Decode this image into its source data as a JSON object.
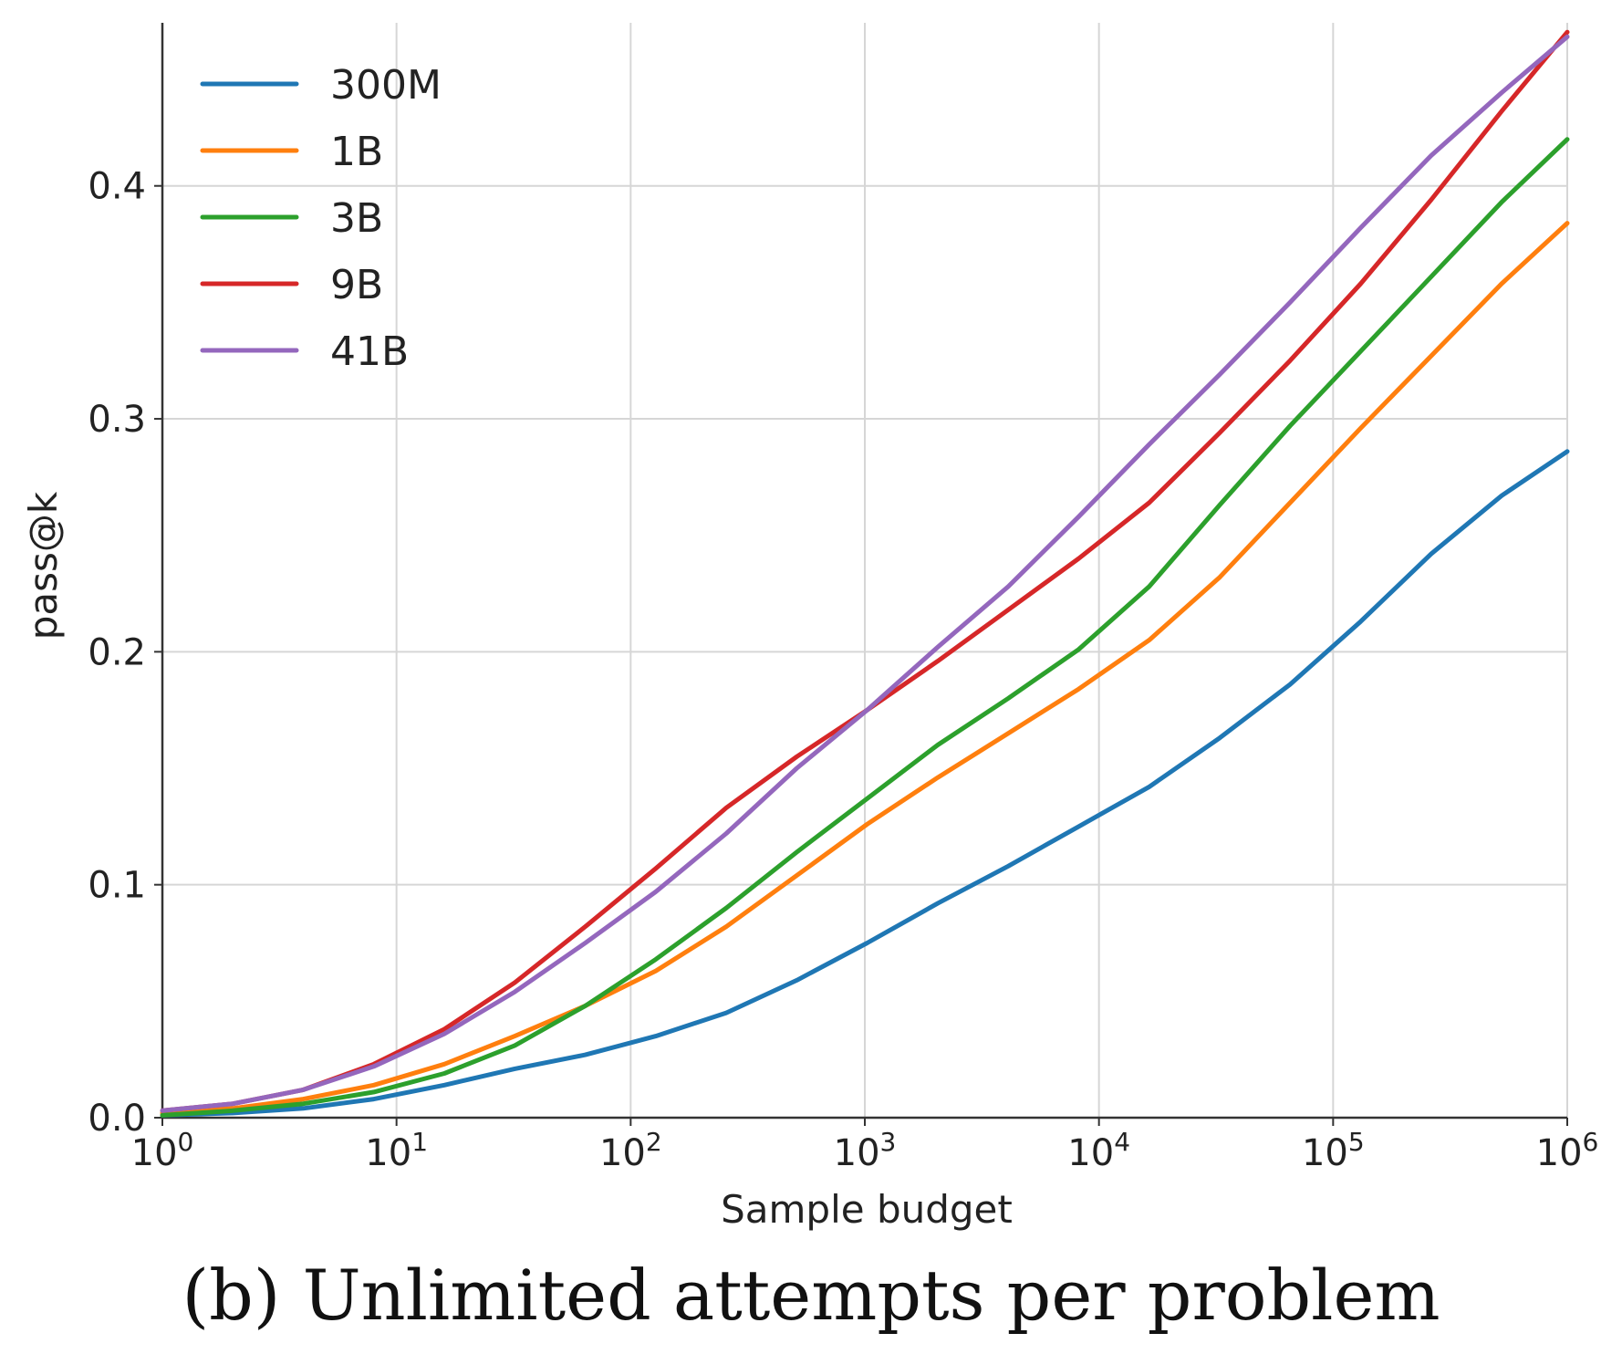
{
  "caption": "(b) Unlimited attempts per problem",
  "chart_data": {
    "type": "line",
    "xlabel": "Sample budget",
    "ylabel": "pass@k",
    "xscale": "log",
    "xlim": [
      1,
      1000000
    ],
    "ylim": [
      0,
      0.47
    ],
    "grid": true,
    "legend_position": "top-left",
    "x_ticks": [
      {
        "base": "10",
        "exp": "0"
      },
      {
        "base": "10",
        "exp": "1"
      },
      {
        "base": "10",
        "exp": "2"
      },
      {
        "base": "10",
        "exp": "3"
      },
      {
        "base": "10",
        "exp": "4"
      },
      {
        "base": "10",
        "exp": "5"
      },
      {
        "base": "10",
        "exp": "6"
      }
    ],
    "y_ticks": [
      "0.0",
      "0.1",
      "0.2",
      "0.3",
      "0.4"
    ],
    "series": [
      {
        "name": "300M",
        "color": "#1f77b4",
        "x": [
          1,
          2,
          4,
          8,
          16,
          32,
          64,
          128,
          256,
          512,
          1024,
          2048,
          4096,
          8192,
          16384,
          32768,
          65536,
          131072,
          262144,
          524288,
          1000000
        ],
        "y": [
          0.001,
          0.002,
          0.004,
          0.008,
          0.014,
          0.021,
          0.027,
          0.035,
          0.045,
          0.059,
          0.075,
          0.092,
          0.108,
          0.125,
          0.142,
          0.163,
          0.186,
          0.213,
          0.242,
          0.267,
          0.286
        ]
      },
      {
        "name": "1B",
        "color": "#ff7f0e",
        "x": [
          1,
          2,
          4,
          8,
          16,
          32,
          64,
          128,
          256,
          512,
          1024,
          2048,
          4096,
          8192,
          16384,
          32768,
          65536,
          131072,
          262144,
          524288,
          1000000
        ],
        "y": [
          0.002,
          0.004,
          0.008,
          0.014,
          0.023,
          0.035,
          0.048,
          0.063,
          0.082,
          0.104,
          0.126,
          0.146,
          0.165,
          0.184,
          0.205,
          0.232,
          0.264,
          0.296,
          0.327,
          0.358,
          0.384
        ]
      },
      {
        "name": "3B",
        "color": "#2ca02c",
        "x": [
          1,
          2,
          4,
          8,
          16,
          32,
          64,
          128,
          256,
          512,
          1024,
          2048,
          4096,
          8192,
          16384,
          32768,
          65536,
          131072,
          262144,
          524288,
          1000000
        ],
        "y": [
          0.001,
          0.003,
          0.006,
          0.011,
          0.019,
          0.031,
          0.048,
          0.068,
          0.09,
          0.114,
          0.137,
          0.16,
          0.18,
          0.201,
          0.228,
          0.263,
          0.297,
          0.329,
          0.361,
          0.393,
          0.42
        ]
      },
      {
        "name": "9B",
        "color": "#d62728",
        "x": [
          1,
          2,
          4,
          8,
          16,
          32,
          64,
          128,
          256,
          512,
          1024,
          2048,
          4096,
          8192,
          16384,
          32768,
          65536,
          131072,
          262144,
          524288,
          1000000
        ],
        "y": [
          0.003,
          0.006,
          0.012,
          0.023,
          0.038,
          0.058,
          0.082,
          0.107,
          0.133,
          0.155,
          0.175,
          0.196,
          0.218,
          0.24,
          0.264,
          0.294,
          0.325,
          0.358,
          0.394,
          0.432,
          0.466
        ]
      },
      {
        "name": "41B",
        "color": "#9467bd",
        "x": [
          1,
          2,
          4,
          8,
          16,
          32,
          64,
          128,
          256,
          512,
          1024,
          2048,
          4096,
          8192,
          16384,
          32768,
          65536,
          131072,
          262144,
          524288,
          1000000
        ],
        "y": [
          0.003,
          0.006,
          0.012,
          0.022,
          0.036,
          0.054,
          0.075,
          0.097,
          0.122,
          0.15,
          0.175,
          0.202,
          0.228,
          0.258,
          0.289,
          0.319,
          0.35,
          0.382,
          0.413,
          0.44,
          0.464
        ]
      }
    ]
  }
}
